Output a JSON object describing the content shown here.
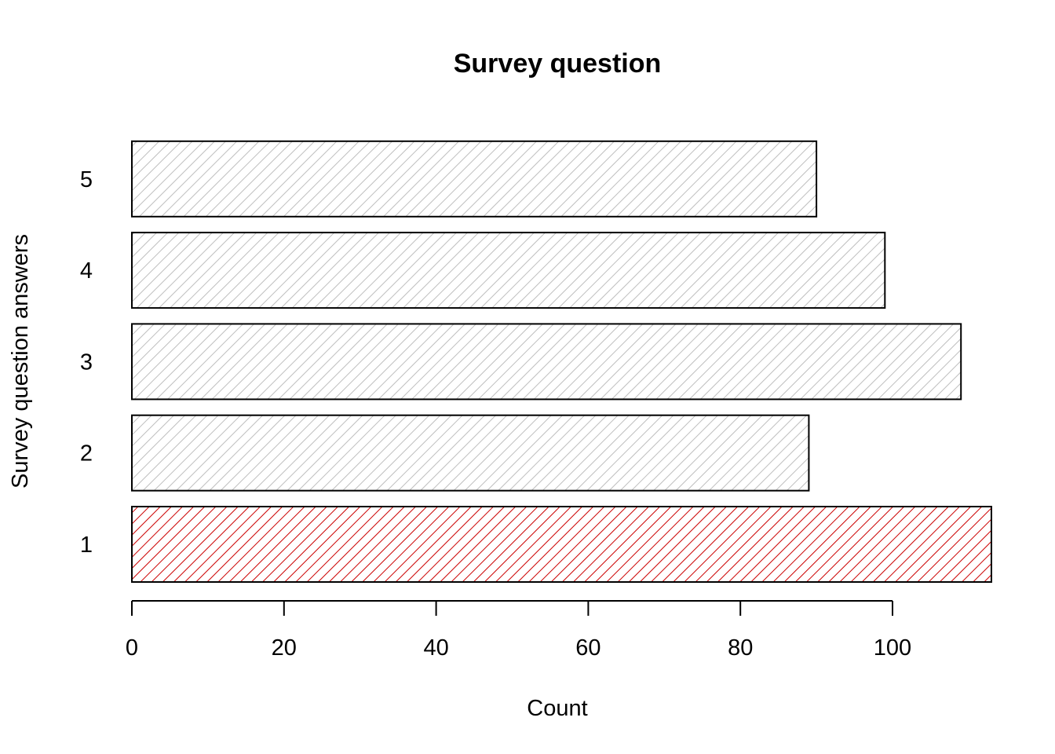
{
  "chart_data": {
    "type": "bar",
    "orientation": "horizontal",
    "title": "Survey question",
    "xlabel": "Count",
    "ylabel": "Survey question answers",
    "categories": [
      "1",
      "2",
      "3",
      "4",
      "5"
    ],
    "values": [
      113,
      89,
      109,
      99,
      90
    ],
    "xlim": [
      0,
      113
    ],
    "xticks": [
      0,
      20,
      40,
      60,
      80,
      100
    ],
    "highlight_category": "1",
    "colors": {
      "highlight": "#cc0000",
      "default": "#bebebe",
      "border": "#000000"
    },
    "grid": false,
    "fill_pattern": "diagonal-hatch"
  }
}
